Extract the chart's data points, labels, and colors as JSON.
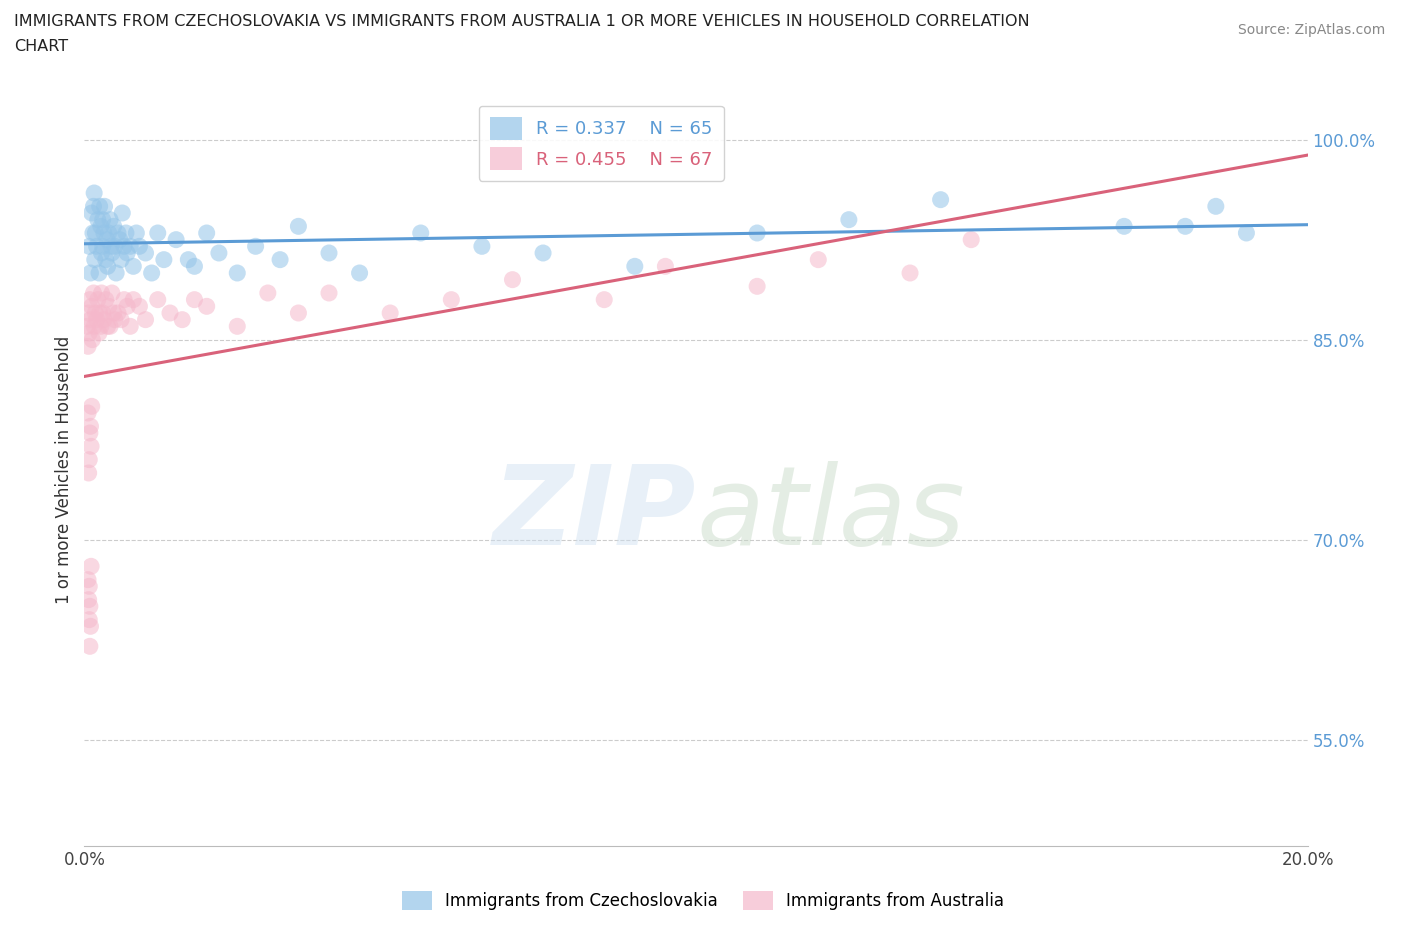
{
  "title_line1": "IMMIGRANTS FROM CZECHOSLOVAKIA VS IMMIGRANTS FROM AUSTRALIA 1 OR MORE VEHICLES IN HOUSEHOLD CORRELATION",
  "title_line2": "CHART",
  "source": "Source: ZipAtlas.com",
  "ylabel": "1 or more Vehicles in Household",
  "xlim": [
    0.0,
    20.0
  ],
  "ylim": [
    47.0,
    103.5
  ],
  "x_ticks": [
    0.0,
    5.0,
    10.0,
    15.0,
    20.0
  ],
  "x_tick_labels": [
    "0.0%",
    "",
    "",
    "",
    "20.0%"
  ],
  "y_ticks": [
    55.0,
    70.0,
    85.0,
    100.0
  ],
  "y_tick_labels": [
    "55.0%",
    "70.0%",
    "85.0%",
    "100.0%"
  ],
  "legend_entries": [
    "Immigrants from Czechoslovakia",
    "Immigrants from Australia"
  ],
  "R_czech": 0.337,
  "N_czech": 65,
  "R_aus": 0.455,
  "N_aus": 67,
  "blue_color": "#93c4e8",
  "pink_color": "#f5b8cb",
  "line_blue": "#5b9bd5",
  "line_pink": "#d9627a",
  "background_color": "#ffffff",
  "grid_color": "#cccccc",
  "czech_x": [
    0.08,
    0.1,
    0.12,
    0.14,
    0.15,
    0.16,
    0.17,
    0.18,
    0.2,
    0.22,
    0.24,
    0.25,
    0.27,
    0.28,
    0.3,
    0.3,
    0.32,
    0.33,
    0.35,
    0.37,
    0.38,
    0.4,
    0.42,
    0.44,
    0.45,
    0.48,
    0.5,
    0.52,
    0.55,
    0.58,
    0.6,
    0.62,
    0.65,
    0.68,
    0.7,
    0.75,
    0.8,
    0.85,
    0.9,
    1.0,
    1.1,
    1.2,
    1.3,
    1.5,
    1.7,
    1.8,
    2.0,
    2.2,
    2.5,
    2.8,
    3.2,
    3.5,
    4.0,
    4.5,
    5.5,
    6.5,
    7.5,
    9.0,
    11.0,
    12.5,
    14.0,
    17.0,
    18.5,
    19.0,
    18.0
  ],
  "czech_y": [
    92.0,
    90.0,
    94.5,
    93.0,
    95.0,
    96.0,
    91.0,
    93.0,
    92.0,
    94.0,
    90.0,
    95.0,
    93.5,
    91.5,
    92.0,
    94.0,
    93.0,
    95.0,
    91.0,
    92.5,
    90.5,
    93.0,
    94.0,
    92.0,
    91.5,
    93.5,
    92.0,
    90.0,
    93.0,
    92.5,
    91.0,
    94.5,
    92.0,
    93.0,
    91.5,
    92.0,
    90.5,
    93.0,
    92.0,
    91.5,
    90.0,
    93.0,
    91.0,
    92.5,
    91.0,
    90.5,
    93.0,
    91.5,
    90.0,
    92.0,
    91.0,
    93.5,
    91.5,
    90.0,
    93.0,
    92.0,
    91.5,
    90.5,
    93.0,
    94.0,
    95.5,
    93.5,
    95.0,
    93.0,
    93.5
  ],
  "aus_x": [
    0.05,
    0.06,
    0.07,
    0.08,
    0.09,
    0.1,
    0.12,
    0.13,
    0.15,
    0.16,
    0.18,
    0.2,
    0.22,
    0.24,
    0.25,
    0.27,
    0.28,
    0.3,
    0.32,
    0.35,
    0.38,
    0.4,
    0.42,
    0.45,
    0.48,
    0.5,
    0.55,
    0.6,
    0.65,
    0.7,
    0.75,
    0.8,
    0.9,
    1.0,
    1.2,
    1.4,
    1.6,
    1.8,
    2.0,
    2.5,
    3.0,
    3.5,
    4.0,
    5.0,
    6.0,
    7.0,
    8.5,
    9.5,
    11.0,
    12.0,
    13.5,
    14.5,
    0.08,
    0.09,
    0.07,
    0.06,
    0.1,
    0.11,
    0.12,
    0.08,
    0.07,
    0.09,
    0.06,
    0.08,
    0.1,
    0.09,
    0.11
  ],
  "aus_y": [
    86.0,
    84.5,
    87.0,
    85.5,
    88.0,
    86.5,
    87.5,
    85.0,
    88.5,
    86.0,
    87.0,
    86.5,
    88.0,
    85.5,
    87.0,
    86.0,
    88.5,
    87.0,
    86.5,
    88.0,
    86.0,
    87.5,
    86.0,
    88.5,
    87.0,
    86.5,
    87.0,
    86.5,
    88.0,
    87.5,
    86.0,
    88.0,
    87.5,
    86.5,
    88.0,
    87.0,
    86.5,
    88.0,
    87.5,
    86.0,
    88.5,
    87.0,
    88.5,
    87.0,
    88.0,
    89.5,
    88.0,
    90.5,
    89.0,
    91.0,
    90.0,
    92.5,
    76.0,
    78.0,
    75.0,
    79.5,
    78.5,
    77.0,
    80.0,
    64.0,
    65.5,
    62.0,
    67.0,
    66.5,
    63.5,
    65.0,
    68.0
  ]
}
